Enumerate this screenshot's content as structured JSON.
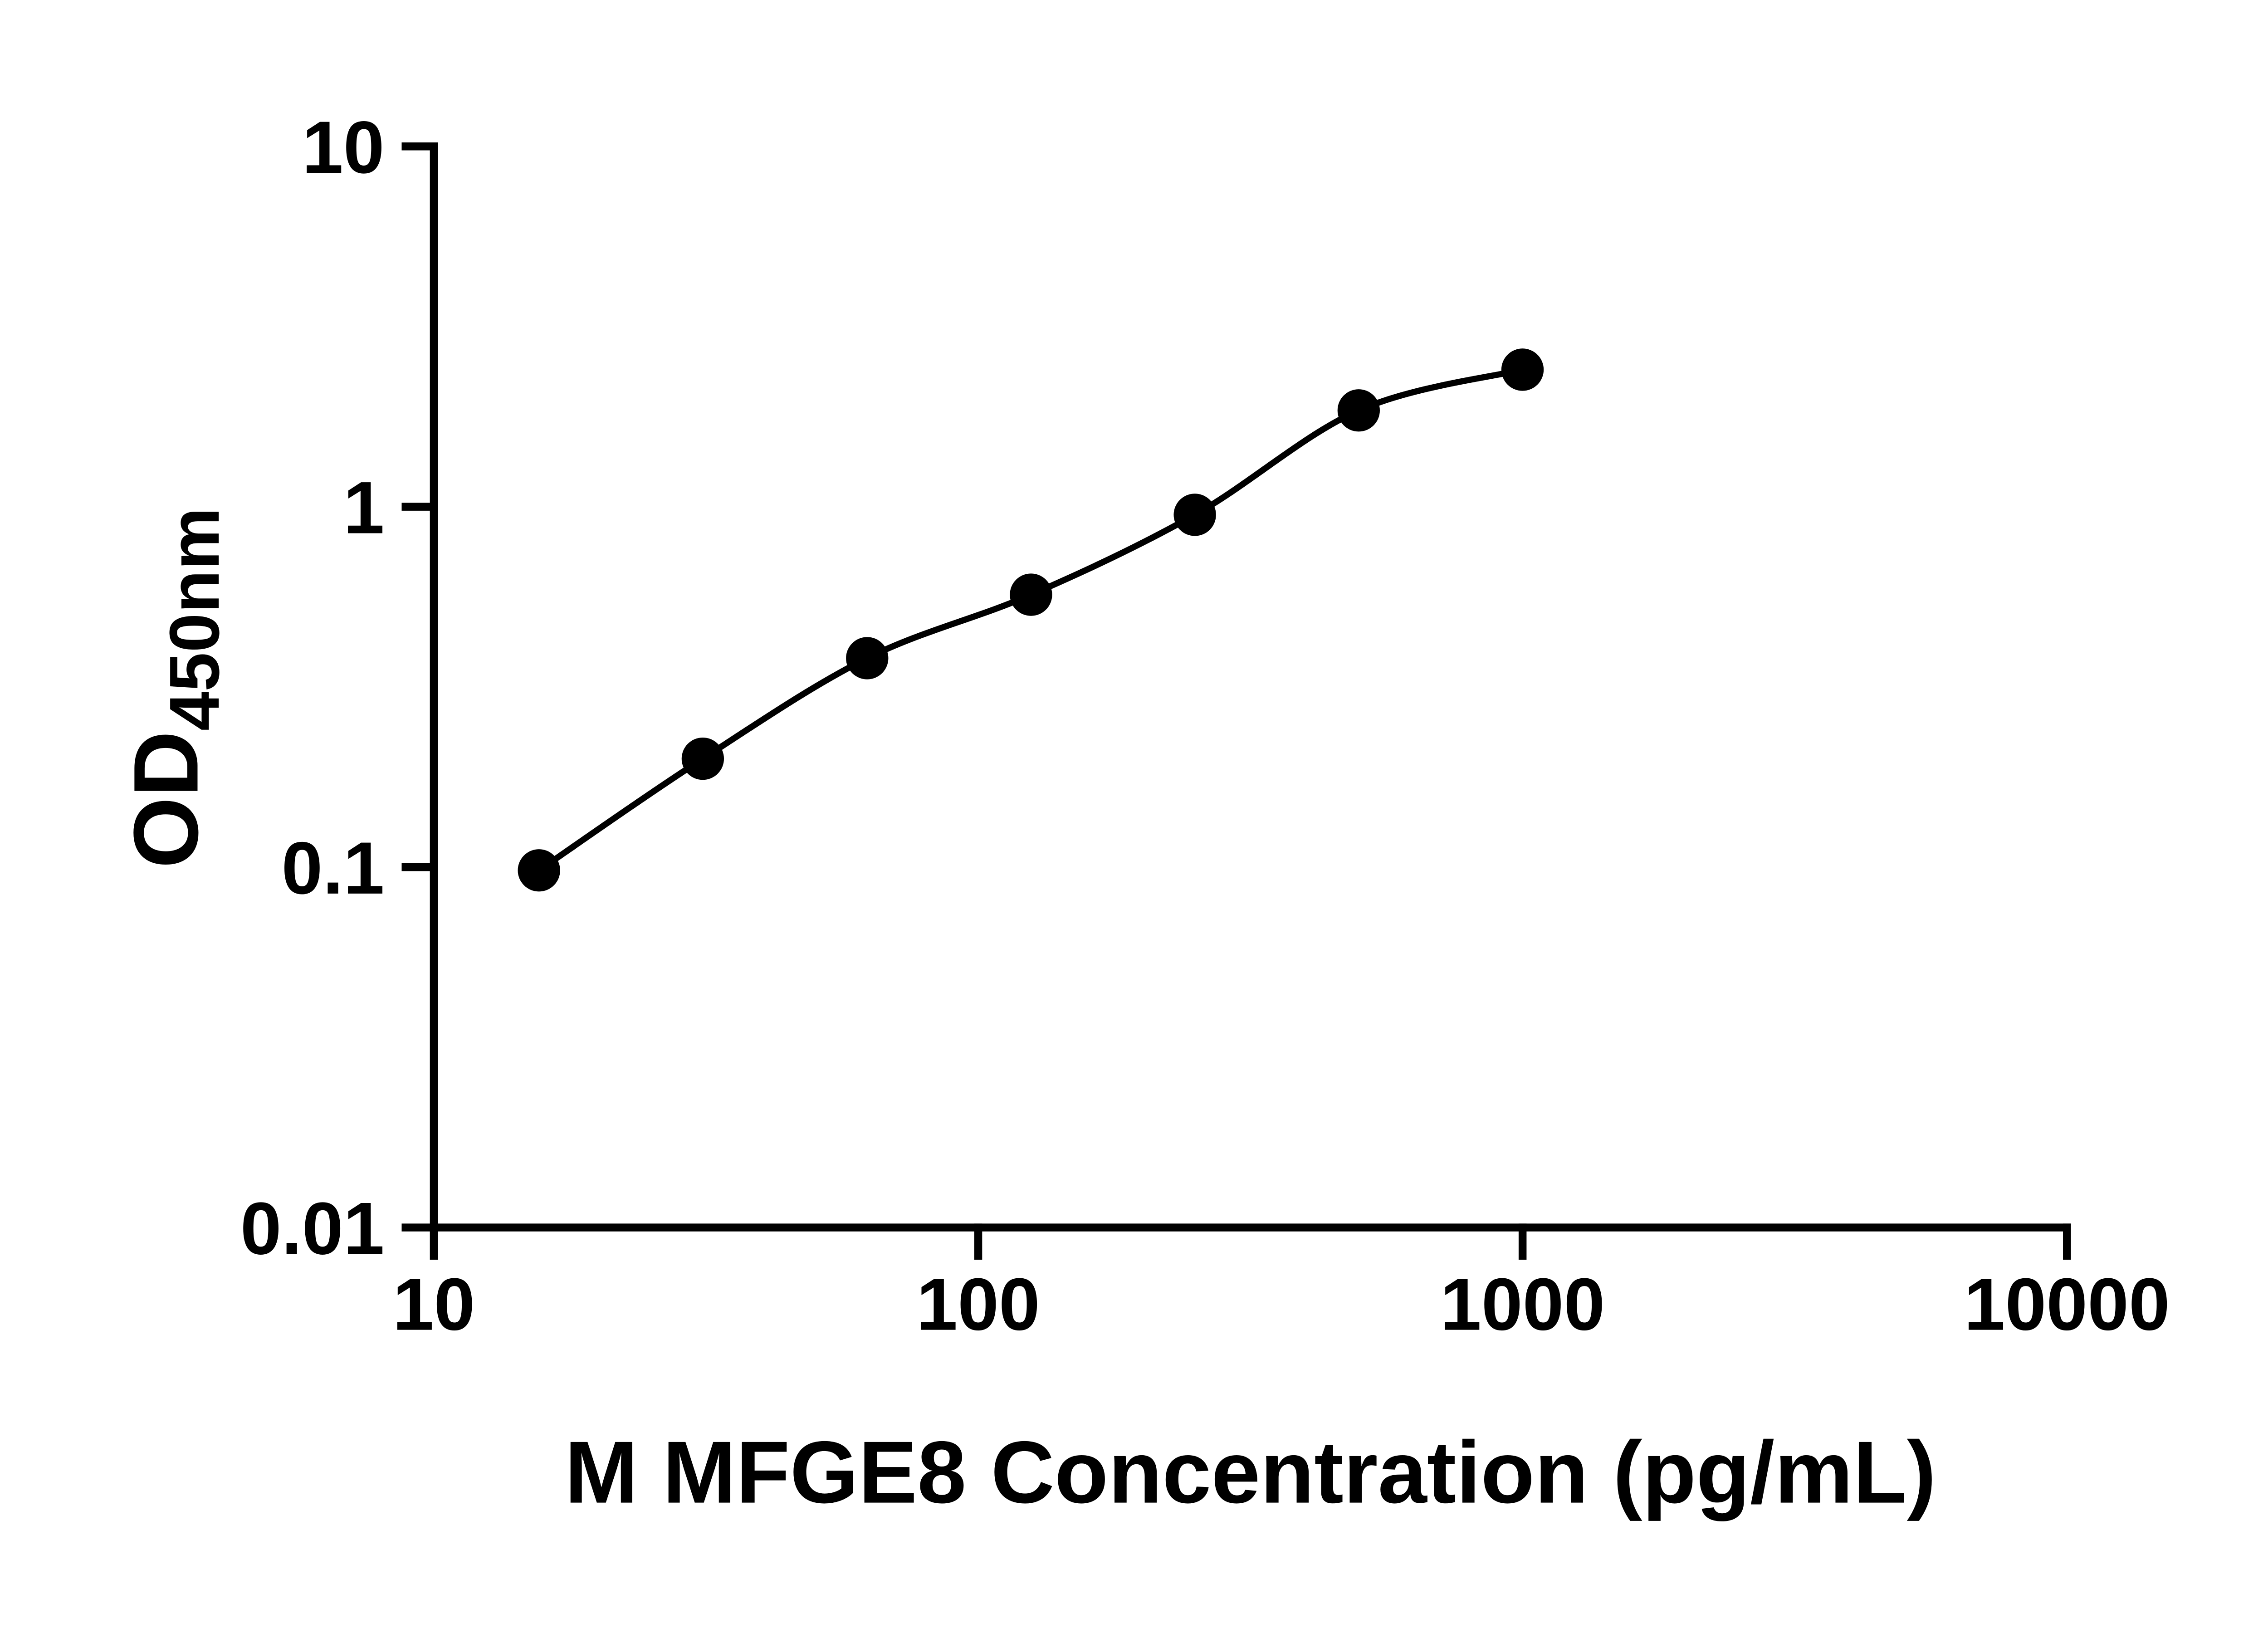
{
  "chart_data": {
    "type": "scatter",
    "series_name": "M MFGE8 standard curve",
    "x": [
      15.6,
      31.2,
      62.5,
      125,
      250,
      500,
      1000
    ],
    "y": [
      0.098,
      0.2,
      0.38,
      0.57,
      0.95,
      1.85,
      2.4
    ],
    "fit_line": true,
    "title": "",
    "xlabel": "M MFGE8 Concentration (pg/mL)",
    "ylabel": "OD",
    "ylabel_subscript": "450nm",
    "x_scale": "log",
    "y_scale": "log",
    "xlim": [
      10,
      10000
    ],
    "ylim": [
      0.01,
      10
    ],
    "x_ticks": [
      10,
      100,
      1000,
      10000
    ],
    "x_tick_labels": [
      "10",
      "100",
      "1000",
      "10000"
    ],
    "y_ticks": [
      0.01,
      0.1,
      1,
      10
    ],
    "y_tick_labels": [
      "0.01",
      "0.1",
      "1",
      "10"
    ],
    "grid": false,
    "legend": "none",
    "marker_color": "#000000",
    "line_color": "#000000",
    "axis_color": "#000000",
    "text_color": "#000000",
    "background": "#ffffff"
  }
}
